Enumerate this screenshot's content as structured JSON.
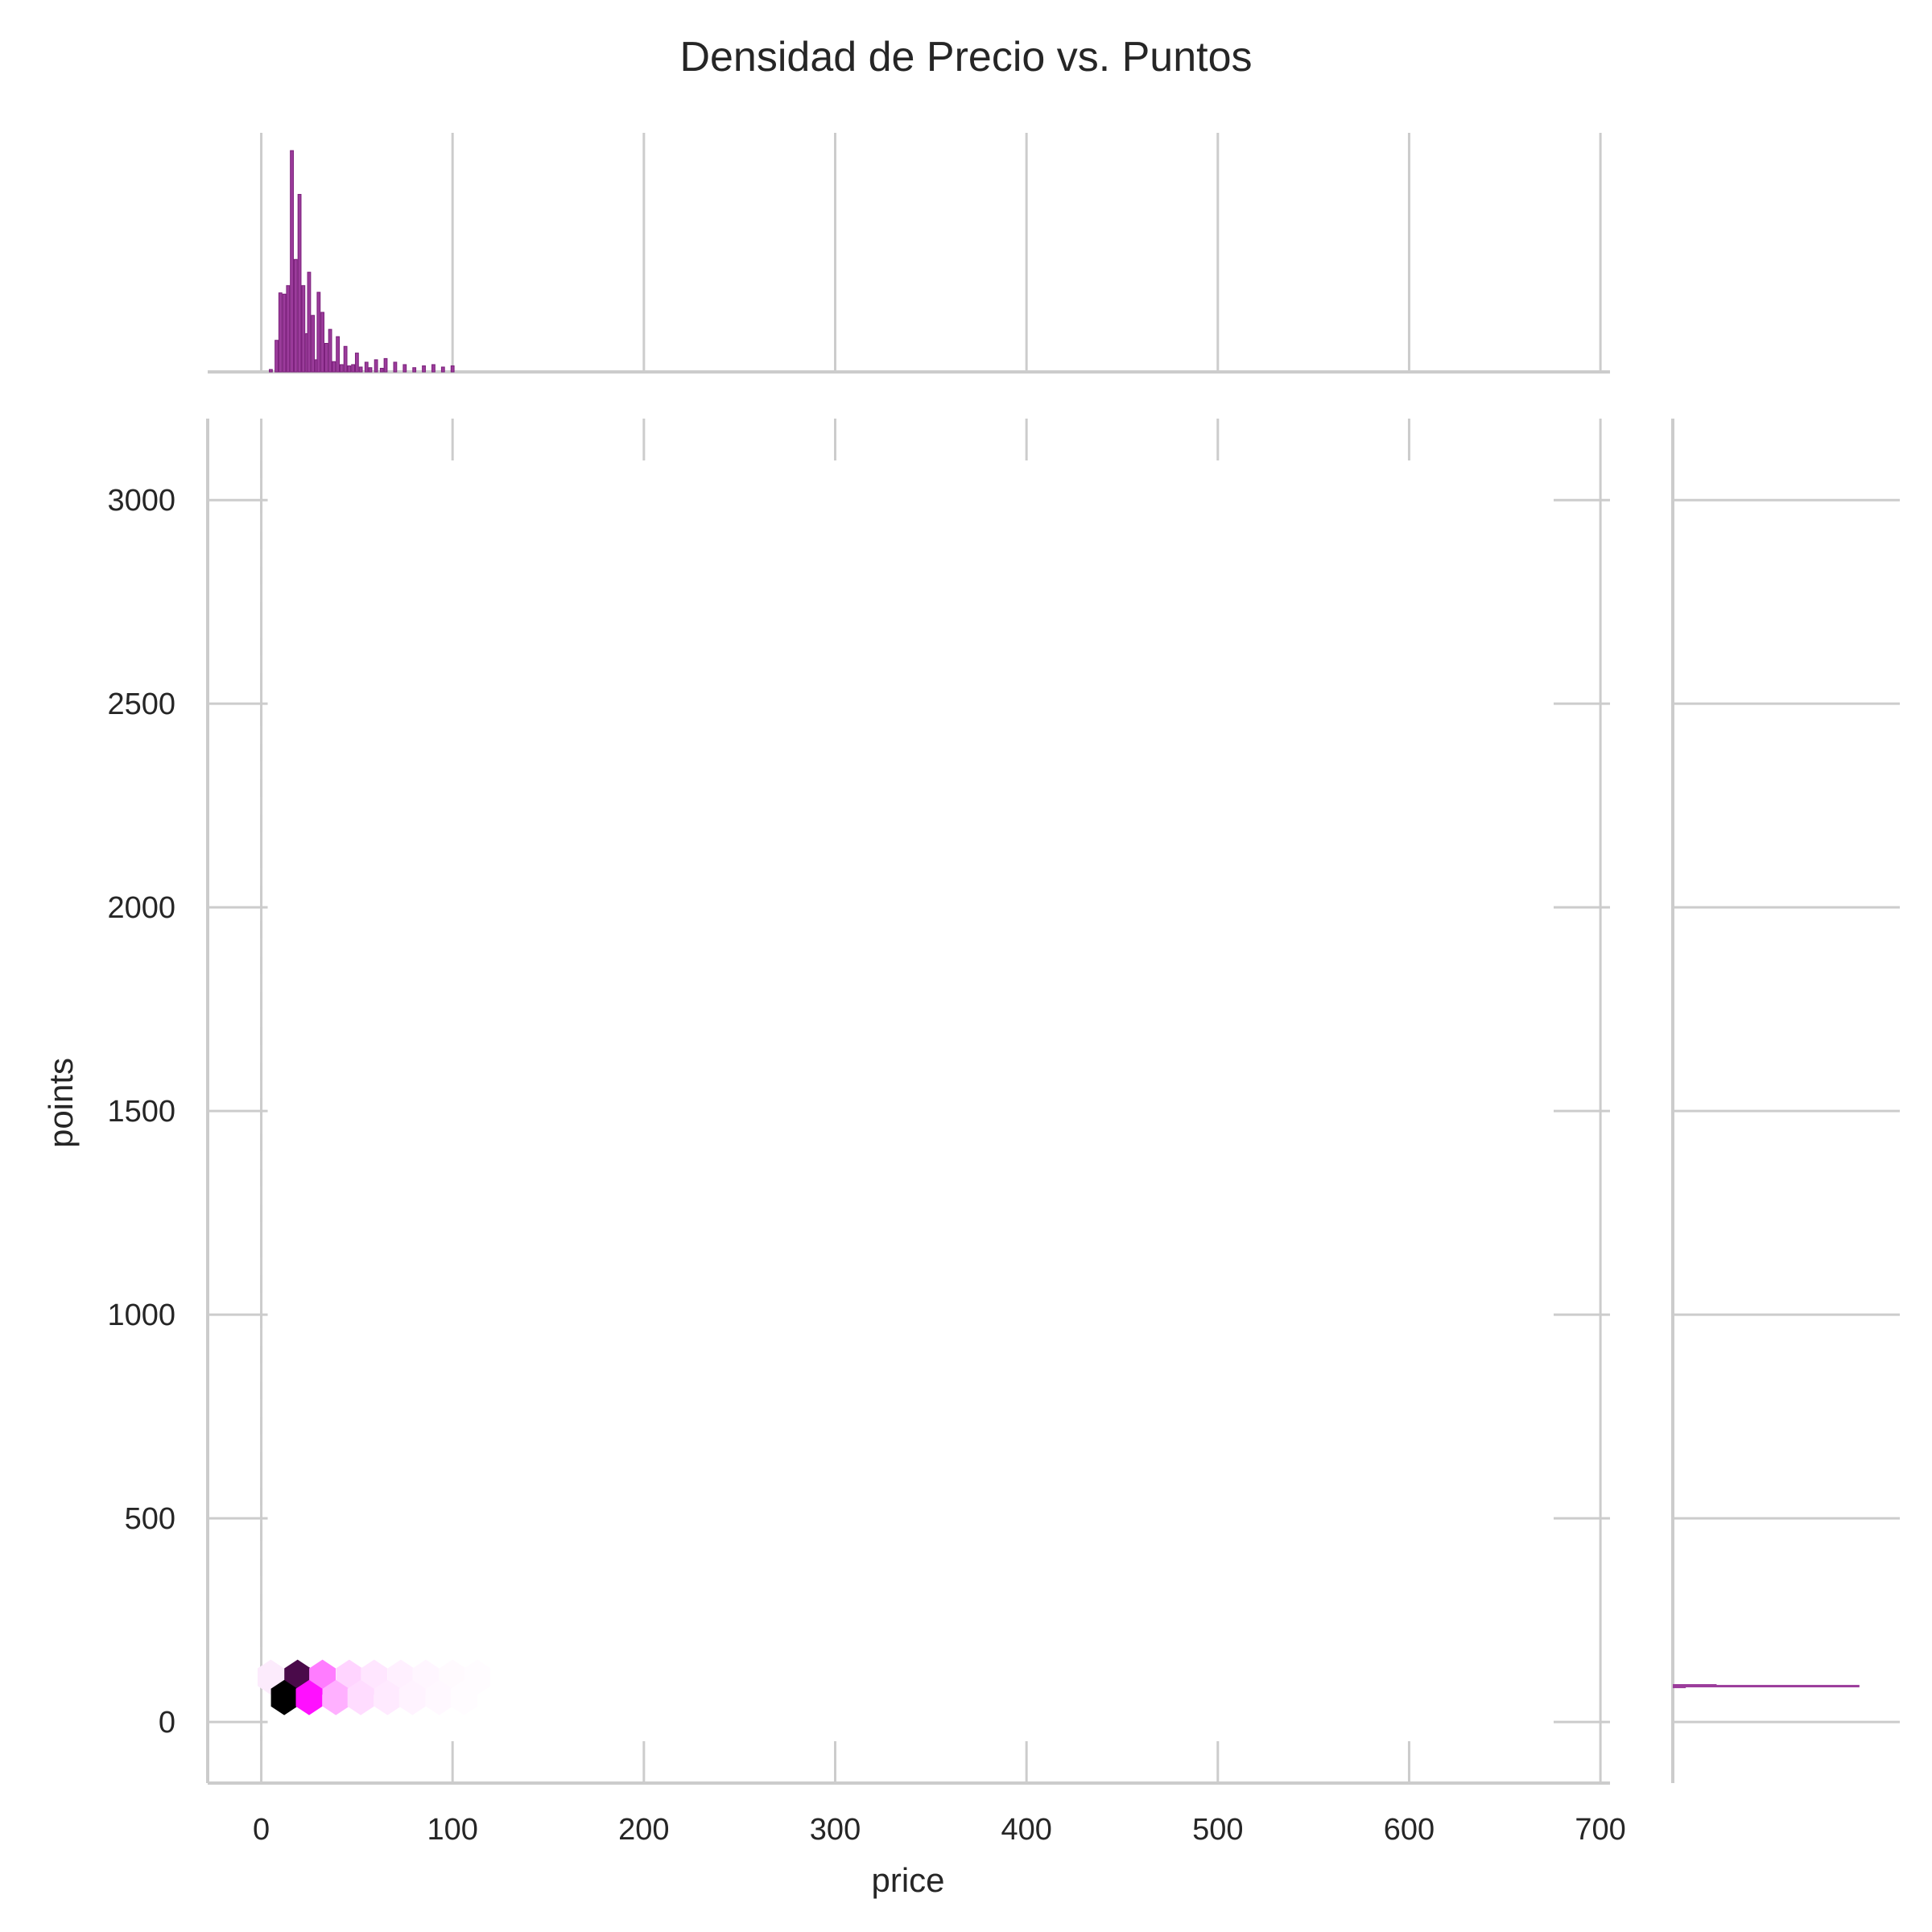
{
  "chart_data": {
    "type": "hexbin",
    "title": "Densidad de Precio vs. Puntos",
    "xlabel": "price",
    "ylabel": "points",
    "xlim": [
      -28,
      705
    ],
    "ylim": [
      -150,
      3200
    ],
    "x_ticks": [
      0,
      100,
      200,
      300,
      400,
      500,
      600,
      700
    ],
    "y_ticks": [
      0,
      500,
      1000,
      1500,
      2000,
      2500,
      3000
    ],
    "grid": true,
    "colors": {
      "hist_fill": "#9b3c9b",
      "hist_edge": "#7a1f7a",
      "grid": "#cccccc",
      "text": "#262626"
    },
    "hexbins": [
      {
        "price": 5,
        "points": 110,
        "color": "#fcebfc"
      },
      {
        "price": 19,
        "points": 110,
        "color": "#4a0a4a"
      },
      {
        "price": 32,
        "points": 110,
        "color": "#ff7cff"
      },
      {
        "price": 46,
        "points": 110,
        "color": "#ffd4ff"
      },
      {
        "price": 59,
        "points": 110,
        "color": "#ffe6ff"
      },
      {
        "price": 73,
        "points": 110,
        "color": "#fff0ff"
      },
      {
        "price": 86,
        "points": 110,
        "color": "#fff6ff"
      },
      {
        "price": 100,
        "points": 110,
        "color": "#fffafe"
      },
      {
        "price": 113,
        "points": 110,
        "color": "#fffcff"
      },
      {
        "price": 12,
        "points": 60,
        "color": "#000000"
      },
      {
        "price": 25,
        "points": 60,
        "color": "#ff10ff"
      },
      {
        "price": 39,
        "points": 60,
        "color": "#ffb0ff"
      },
      {
        "price": 52,
        "points": 60,
        "color": "#ffdcff"
      },
      {
        "price": 66,
        "points": 60,
        "color": "#ffeaff"
      },
      {
        "price": 79,
        "points": 60,
        "color": "#fff3ff"
      },
      {
        "price": 93,
        "points": 60,
        "color": "#fff8ff"
      },
      {
        "price": 106,
        "points": 60,
        "color": "#fffcff"
      }
    ],
    "price_histogram": {
      "bin_width": 1.6,
      "bins": [
        {
          "price": 5,
          "count": 40
        },
        {
          "price": 8,
          "count": 520
        },
        {
          "price": 10,
          "count": 1300
        },
        {
          "price": 12,
          "count": 1280
        },
        {
          "price": 14,
          "count": 1420
        },
        {
          "price": 16,
          "count": 3640
        },
        {
          "price": 18,
          "count": 1850
        },
        {
          "price": 20,
          "count": 2920
        },
        {
          "price": 22,
          "count": 1420
        },
        {
          "price": 24,
          "count": 630
        },
        {
          "price": 25,
          "count": 1640
        },
        {
          "price": 27,
          "count": 930
        },
        {
          "price": 29,
          "count": 200
        },
        {
          "price": 30,
          "count": 1310
        },
        {
          "price": 32,
          "count": 980
        },
        {
          "price": 34,
          "count": 470
        },
        {
          "price": 36,
          "count": 700
        },
        {
          "price": 38,
          "count": 170
        },
        {
          "price": 40,
          "count": 580
        },
        {
          "price": 42,
          "count": 120
        },
        {
          "price": 44,
          "count": 420
        },
        {
          "price": 46,
          "count": 100
        },
        {
          "price": 48,
          "count": 120
        },
        {
          "price": 50,
          "count": 310
        },
        {
          "price": 52,
          "count": 80
        },
        {
          "price": 55,
          "count": 160
        },
        {
          "price": 57,
          "count": 70
        },
        {
          "price": 60,
          "count": 200
        },
        {
          "price": 63,
          "count": 60
        },
        {
          "price": 65,
          "count": 220
        },
        {
          "price": 70,
          "count": 160
        },
        {
          "price": 75,
          "count": 120
        },
        {
          "price": 80,
          "count": 70
        },
        {
          "price": 85,
          "count": 100
        },
        {
          "price": 90,
          "count": 120
        },
        {
          "price": 95,
          "count": 80
        },
        {
          "price": 100,
          "count": 100
        }
      ],
      "count_max": 3800
    },
    "points_histogram": {
      "count_max": 1250,
      "bins": [
        {
          "points": 88,
          "count": 1150
        },
        {
          "points": 90,
          "count": 270
        },
        {
          "points": 86,
          "count": 80
        }
      ]
    }
  }
}
